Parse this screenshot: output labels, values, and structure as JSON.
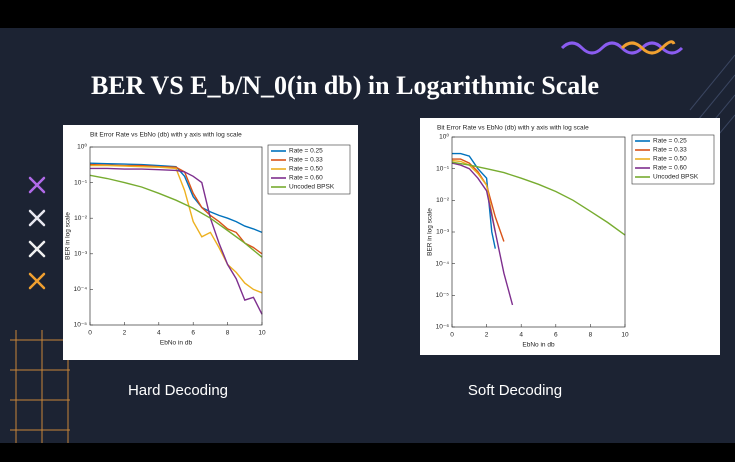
{
  "slide": {
    "title": "BER VS E_b/N_0(in db) in Logarithmic Scale",
    "captions": [
      "Hard Decoding",
      "Soft Decoding"
    ]
  },
  "chart_data": [
    {
      "type": "line",
      "title": "Bit Error Rate vs EbNo (db) with y axis with log scale",
      "xlabel": "EbNo in db",
      "ylabel": "BER in log scale",
      "log_y": true,
      "legend": "upper right",
      "xlim": [
        0,
        10
      ],
      "xticks": [
        0,
        2,
        4,
        6,
        8,
        10
      ],
      "ylim": [
        1e-05,
        1
      ],
      "yticks": [
        {
          "value": 1,
          "label": "10⁰"
        },
        {
          "value": 0.1,
          "label": "10⁻¹"
        },
        {
          "value": 0.01,
          "label": "10⁻²"
        },
        {
          "value": 0.001,
          "label": "10⁻³"
        },
        {
          "value": 0.0001,
          "label": "10⁻⁴"
        },
        {
          "value": 1e-05,
          "label": "10⁻⁵"
        }
      ],
      "series": [
        {
          "name": "Rate = 0.25",
          "color": "#0072bd",
          "x": [
            0,
            1,
            2,
            3,
            4,
            5,
            5.5,
            6,
            6.5,
            7,
            7.5,
            8,
            8.5,
            9,
            9.5,
            10
          ],
          "values": [
            0.35,
            0.34,
            0.33,
            0.32,
            0.3,
            0.28,
            0.15,
            0.04,
            0.02,
            0.015,
            0.012,
            0.01,
            0.008,
            0.006,
            0.005,
            0.004
          ]
        },
        {
          "name": "Rate = 0.33",
          "color": "#d95319",
          "x": [
            0,
            1,
            2,
            3,
            4,
            5,
            5.5,
            6,
            6.5,
            7,
            7.5,
            8,
            8.5,
            9,
            9.5,
            10
          ],
          "values": [
            0.32,
            0.31,
            0.3,
            0.3,
            0.28,
            0.27,
            0.2,
            0.05,
            0.02,
            0.012,
            0.008,
            0.005,
            0.004,
            0.002,
            0.0015,
            0.001
          ]
        },
        {
          "name": "Rate = 0.50",
          "color": "#edb120",
          "x": [
            0,
            1,
            2,
            3,
            4,
            5,
            5.5,
            6,
            6.5,
            7,
            7.5,
            8,
            8.5,
            9,
            9.5,
            10
          ],
          "values": [
            0.3,
            0.3,
            0.29,
            0.28,
            0.27,
            0.25,
            0.06,
            0.008,
            0.003,
            0.004,
            0.0015,
            0.0005,
            0.0003,
            0.00015,
            0.0001,
            8e-05
          ]
        },
        {
          "name": "Rate = 0.60",
          "color": "#7e2f8e",
          "x": [
            0,
            1,
            2,
            3,
            4,
            5,
            5.5,
            6,
            6.5,
            7,
            7.5,
            8,
            8.5,
            9,
            9.5,
            10
          ],
          "values": [
            0.25,
            0.25,
            0.24,
            0.24,
            0.23,
            0.22,
            0.2,
            0.15,
            0.1,
            0.01,
            0.002,
            0.0005,
            0.0002,
            5e-05,
            6e-05,
            2e-05
          ]
        },
        {
          "name": "Uncoded BPSK",
          "color": "#77ac30",
          "x": [
            0,
            1,
            2,
            3,
            4,
            5,
            6,
            7,
            8,
            9,
            10
          ],
          "values": [
            0.16,
            0.13,
            0.1,
            0.075,
            0.05,
            0.032,
            0.019,
            0.01,
            0.0045,
            0.002,
            0.0008
          ]
        }
      ]
    },
    {
      "type": "line",
      "title": "Bit Error Rate vs EbNo (db) with y axis with log scale",
      "xlabel": "EbNo in db",
      "ylabel": "BER in log scale",
      "log_y": true,
      "legend": "upper right",
      "xlim": [
        0,
        10
      ],
      "xticks": [
        0,
        2,
        4,
        6,
        8,
        10
      ],
      "ylim": [
        1e-06,
        1
      ],
      "yticks": [
        {
          "value": 1,
          "label": "10⁰"
        },
        {
          "value": 0.1,
          "label": "10⁻¹"
        },
        {
          "value": 0.01,
          "label": "10⁻²"
        },
        {
          "value": 0.001,
          "label": "10⁻³"
        },
        {
          "value": 0.0001,
          "label": "10⁻⁴"
        },
        {
          "value": 1e-05,
          "label": "10⁻⁵"
        },
        {
          "value": 1e-06,
          "label": "10⁻⁶"
        }
      ],
      "series": [
        {
          "name": "Rate = 0.25",
          "color": "#0072bd",
          "x": [
            0,
            0.5,
            1,
            1.5,
            2,
            2.3,
            2.5
          ],
          "values": [
            0.3,
            0.3,
            0.25,
            0.1,
            0.05,
            0.001,
            0.0003
          ]
        },
        {
          "name": "Rate = 0.33",
          "color": "#d95319",
          "x": [
            0,
            0.5,
            1,
            1.5,
            2,
            2.5,
            3
          ],
          "values": [
            0.2,
            0.2,
            0.15,
            0.08,
            0.03,
            0.003,
            0.0005
          ]
        },
        {
          "name": "Rate = 0.50",
          "color": "#edb120",
          "x": [
            0,
            0.5,
            1,
            1.5,
            2,
            2.5
          ],
          "values": [
            0.18,
            0.17,
            0.13,
            0.07,
            0.03,
            0.001
          ]
        },
        {
          "name": "Rate = 0.60",
          "color": "#7e2f8e",
          "x": [
            0,
            0.5,
            1,
            1.5,
            2,
            2.5,
            3,
            3.5
          ],
          "values": [
            0.15,
            0.13,
            0.1,
            0.05,
            0.02,
            0.001,
            5e-05,
            5e-06
          ]
        },
        {
          "name": "Uncoded BPSK",
          "color": "#77ac30",
          "x": [
            0,
            1,
            2,
            3,
            4,
            5,
            6,
            7,
            8,
            9,
            10
          ],
          "values": [
            0.16,
            0.13,
            0.1,
            0.075,
            0.05,
            0.032,
            0.019,
            0.01,
            0.0045,
            0.002,
            0.0008
          ]
        }
      ]
    }
  ]
}
